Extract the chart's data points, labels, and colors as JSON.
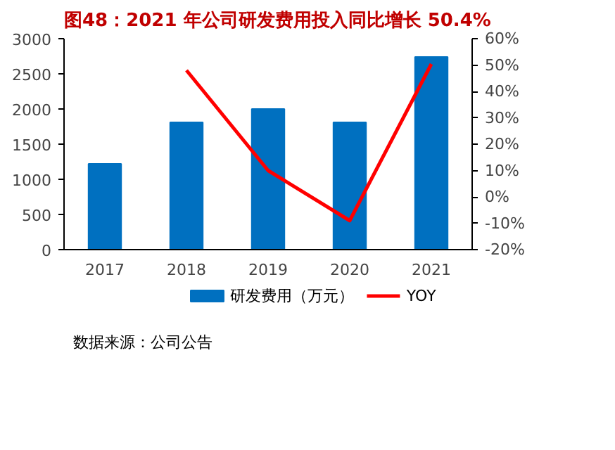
{
  "chart_data": {
    "type": "bar",
    "title": "图48：2021 年公司研发费用投入同比增长 50.4%",
    "categories": [
      "2017",
      "2018",
      "2019",
      "2020",
      "2021"
    ],
    "series": [
      {
        "name": "研发费用（万元）",
        "color": "#0070c0",
        "values": [
          1220,
          1810,
          2000,
          1810,
          2740
        ]
      },
      {
        "name": "YOY",
        "type": "line",
        "axis": "y2",
        "color": "#ff0000",
        "values": [
          null,
          48,
          10,
          -9,
          50.4
        ]
      }
    ],
    "ylim": [
      0,
      3000
    ],
    "yticks": [
      0,
      500,
      1000,
      1500,
      2000,
      2500,
      3000
    ],
    "y2lim": [
      -20,
      60
    ],
    "y2ticks": [
      {
        "value": -20,
        "label": "-20%"
      },
      {
        "value": -10,
        "label": "-10%"
      },
      {
        "value": 0,
        "label": "0%"
      },
      {
        "value": 10,
        "label": "10%"
      },
      {
        "value": 20,
        "label": "20%"
      },
      {
        "value": 30,
        "label": "30%"
      },
      {
        "value": 40,
        "label": "40%"
      },
      {
        "value": 50,
        "label": "50%"
      },
      {
        "value": 60,
        "label": "60%"
      }
    ],
    "grid": false,
    "legend": "bottom",
    "annotations": [
      "数据来源：公司公告"
    ]
  }
}
